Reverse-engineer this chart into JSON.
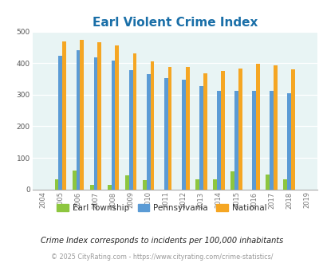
{
  "title": "Earl Violent Crime Index",
  "years": [
    "2004",
    "2005",
    "2006",
    "2007",
    "2008",
    "2009",
    "2010",
    "2011",
    "2012",
    "2013",
    "2014",
    "2015",
    "2016",
    "2017",
    "2018",
    "2019"
  ],
  "earl": [
    0,
    32,
    60,
    13,
    14,
    44,
    29,
    0,
    0,
    33,
    32,
    57,
    0,
    46,
    32,
    0
  ],
  "pennsylvania": [
    0,
    422,
    440,
    417,
    408,
    379,
    366,
    352,
    347,
    328,
    313,
    313,
    313,
    311,
    305,
    0
  ],
  "national": [
    0,
    469,
    473,
    467,
    455,
    431,
    405,
    387,
    387,
    367,
    376,
    383,
    397,
    394,
    380,
    0
  ],
  "earl_color": "#8dc63f",
  "pa_color": "#5b9bd5",
  "national_color": "#f5a623",
  "bg_color": "#e8f4f4",
  "title_color": "#1a6fa8",
  "ylabel_max": 500,
  "yticks": [
    0,
    100,
    200,
    300,
    400,
    500
  ],
  "footnote": "Crime Index corresponds to incidents per 100,000 inhabitants",
  "copyright": "© 2025 CityRating.com - https://www.cityrating.com/crime-statistics/",
  "footnote_color": "#222222",
  "copyright_color": "#999999"
}
